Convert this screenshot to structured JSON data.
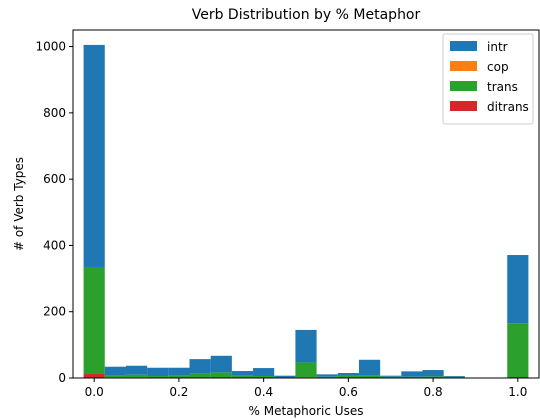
{
  "chart_data": {
    "type": "bar",
    "stacked": true,
    "title": "Verb Distribution by % Metaphor",
    "xlabel": "% Metaphoric Uses",
    "ylabel": "# of Verb Types",
    "xlim": [
      -0.05,
      1.05
    ],
    "ylim": [
      0,
      1050
    ],
    "xticks": [
      0.0,
      0.2,
      0.4,
      0.6,
      0.8,
      1.0
    ],
    "xtick_labels": [
      "0.0",
      "0.2",
      "0.4",
      "0.6",
      "0.8",
      "1.0"
    ],
    "yticks": [
      0,
      200,
      400,
      600,
      800,
      1000
    ],
    "ytick_labels": [
      "0",
      "200",
      "400",
      "600",
      "800",
      "1000"
    ],
    "grid": false,
    "legend_position": "top-right",
    "bin_width": 0.05,
    "x": [
      0.0,
      0.05,
      0.1,
      0.15,
      0.2,
      0.25,
      0.3,
      0.35,
      0.4,
      0.45,
      0.5,
      0.55,
      0.6,
      0.65,
      0.7,
      0.75,
      0.8,
      0.85,
      0.9,
      0.95,
      1.0
    ],
    "series": [
      {
        "name": "ditrans",
        "color": "#d62728",
        "values": [
          12,
          2,
          2,
          1,
          1,
          1,
          1,
          1,
          1,
          0,
          2,
          0,
          1,
          0,
          0,
          0,
          0,
          0,
          0,
          0,
          3
        ]
      },
      {
        "name": "trans",
        "color": "#2ca02c",
        "values": [
          323,
          5,
          8,
          5,
          6,
          13,
          16,
          6,
          5,
          3,
          45,
          4,
          8,
          8,
          4,
          4,
          5,
          4,
          0,
          0,
          162
        ]
      },
      {
        "name": "cop",
        "color": "#ff7f0e",
        "values": [
          0,
          0,
          0,
          0,
          0,
          0,
          0,
          0,
          0,
          0,
          0,
          0,
          0,
          0,
          0,
          0,
          0,
          0,
          0,
          0,
          0
        ]
      },
      {
        "name": "intr",
        "color": "#1f77b4",
        "values": [
          670,
          27,
          27,
          25,
          24,
          43,
          50,
          14,
          24,
          4,
          98,
          7,
          6,
          47,
          3,
          16,
          19,
          2,
          0,
          0,
          206
        ]
      }
    ],
    "legend_order": [
      "intr",
      "cop",
      "trans",
      "ditrans"
    ]
  }
}
